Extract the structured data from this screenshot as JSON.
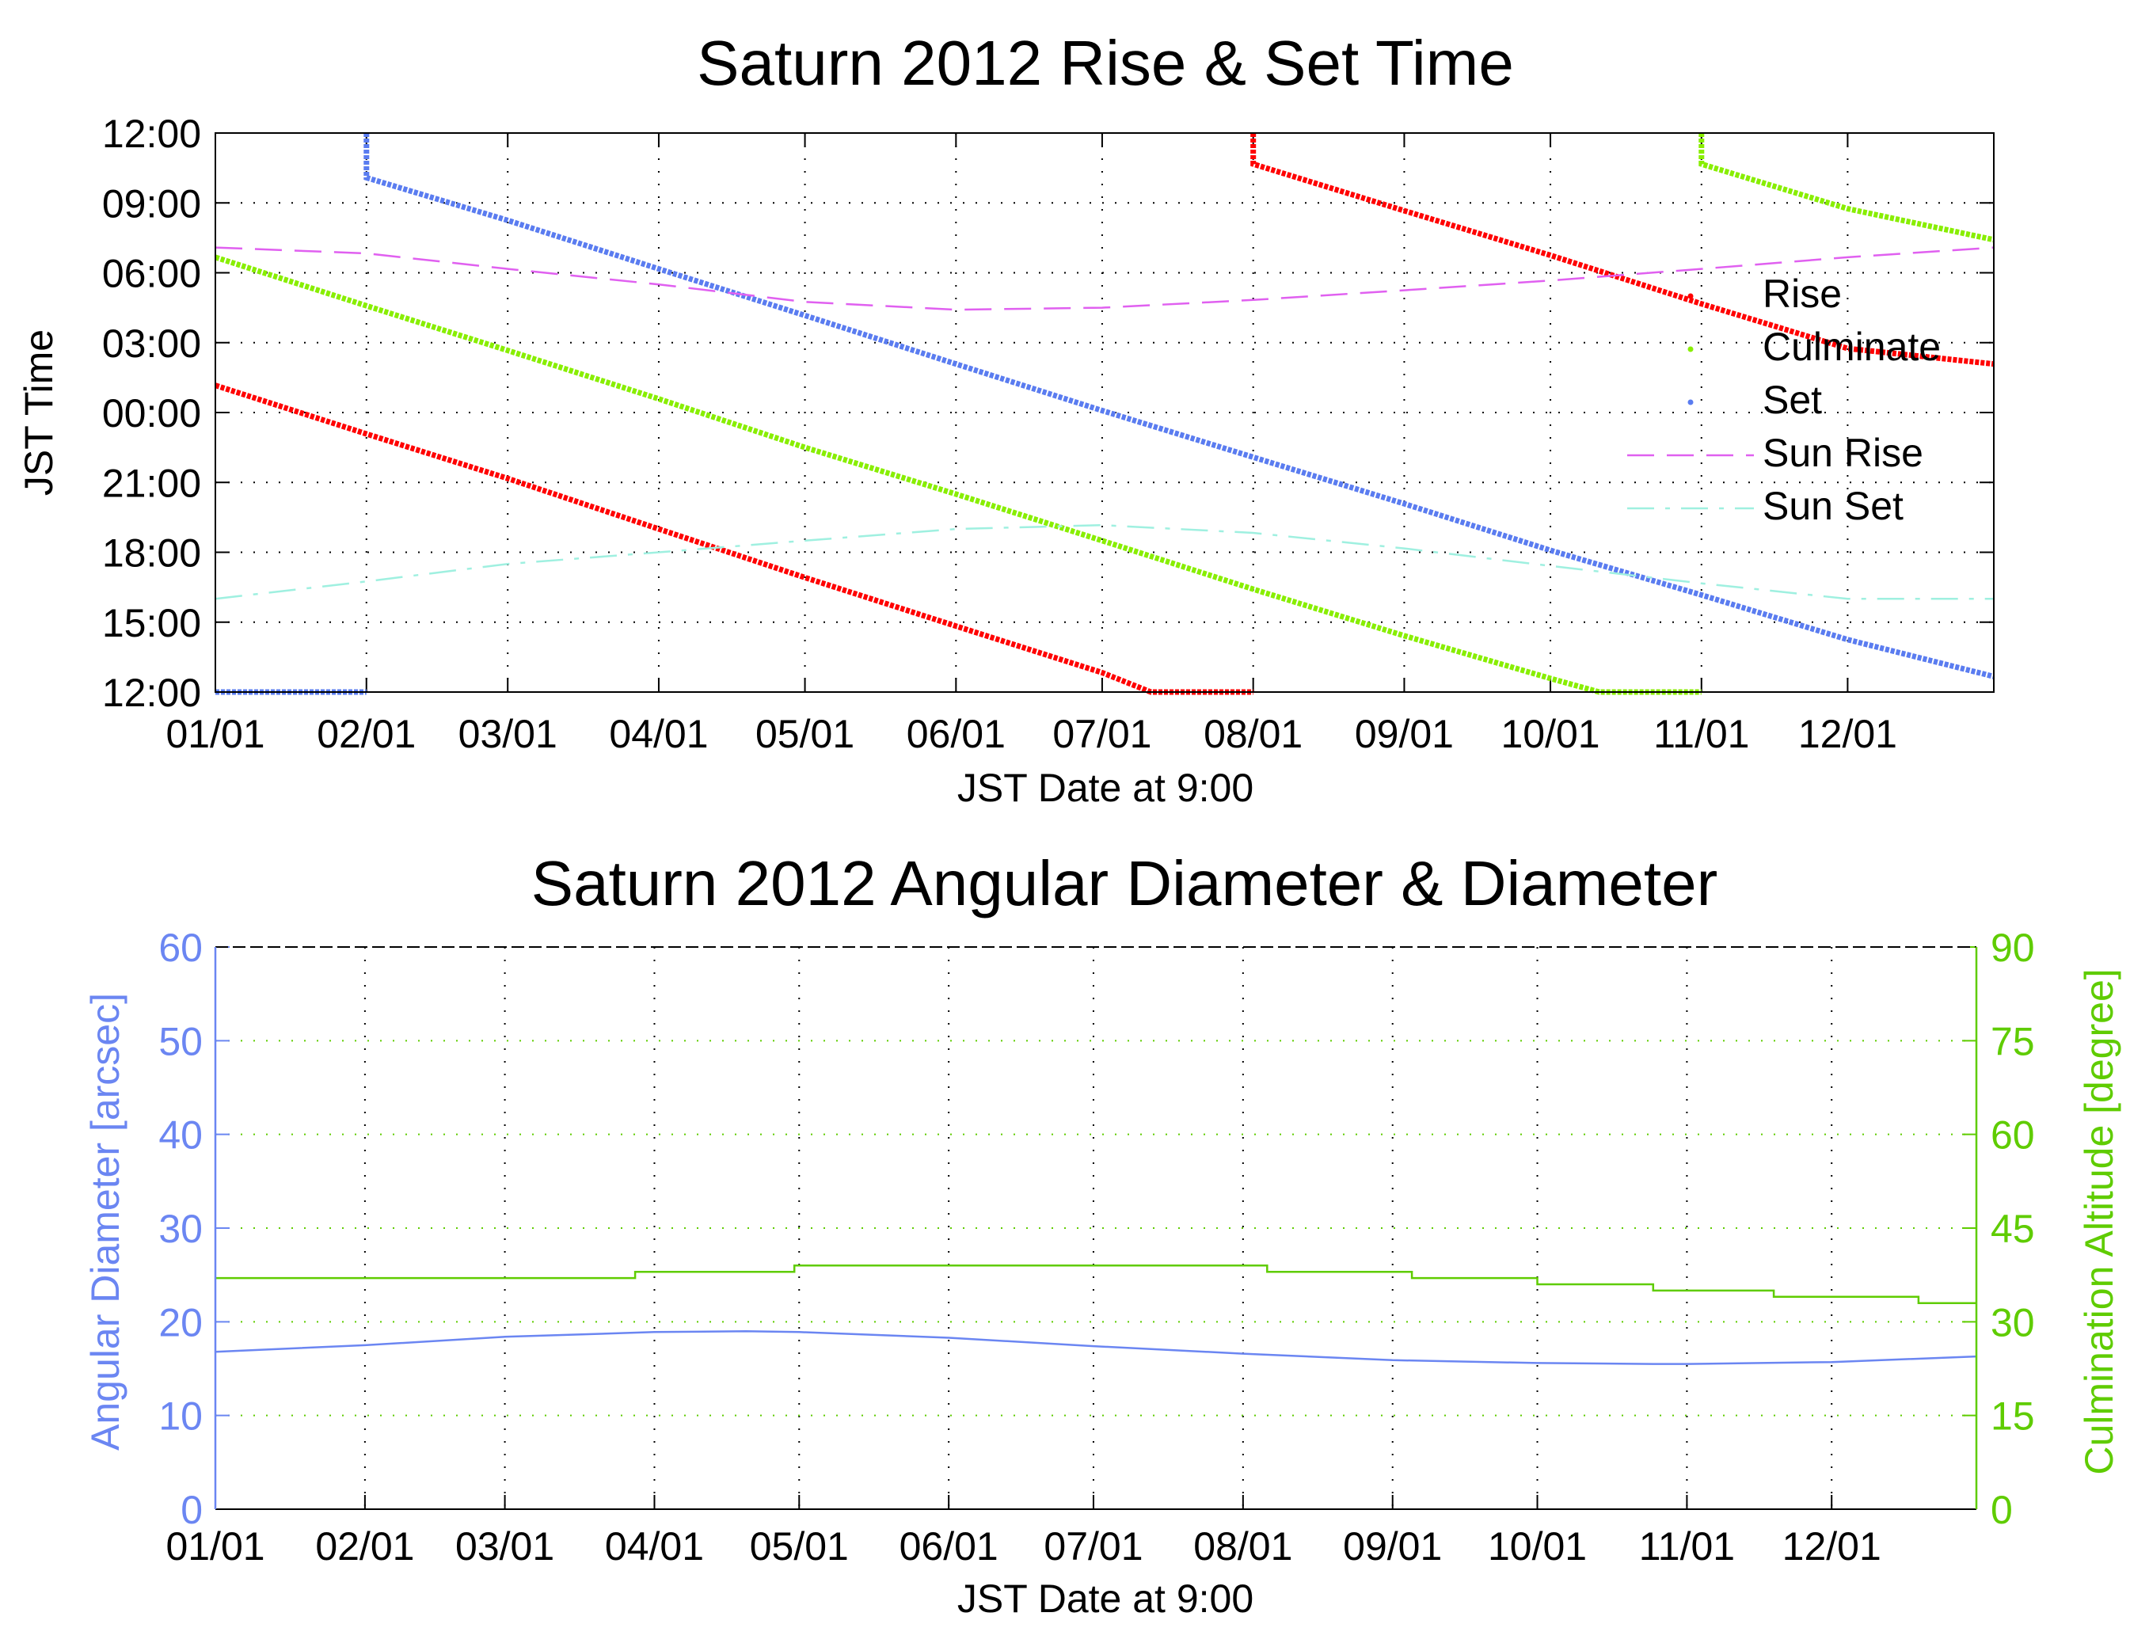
{
  "chart_data": [
    {
      "type": "scatter",
      "title": "Saturn 2012 Rise & Set Time",
      "xlabel": "JST Date at 9:00",
      "ylabel": "JST Time",
      "x_ticks": [
        "01/01",
        "02/01",
        "03/01",
        "04/01",
        "05/01",
        "06/01",
        "07/01",
        "08/01",
        "09/01",
        "10/01",
        "11/01",
        "12/01"
      ],
      "y_ticks": [
        "12:00",
        "15:00",
        "18:00",
        "21:00",
        "00:00",
        "03:00",
        "06:00",
        "09:00",
        "12:00"
      ],
      "xlim": [
        "2012-01-01",
        "2012-12-31"
      ],
      "ylim": [
        "12:00",
        "12:00 (+1 day)"
      ],
      "y_scale_note": "time of day from 12:00 (bottom) through 00:00 to 12:00 (top)",
      "grid": true,
      "legend": "right",
      "series": [
        {
          "name": "Rise",
          "color": "#ff0000",
          "style": "dots",
          "points": [
            [
              "2012-01-01",
              "01:10"
            ],
            [
              "2012-02-01",
              "23:05"
            ],
            [
              "2012-03-01",
              "21:10"
            ],
            [
              "2012-04-01",
              "19:00"
            ],
            [
              "2012-05-01",
              "16:55"
            ],
            [
              "2012-06-01",
              "14:50"
            ],
            [
              "2012-07-01",
              "12:50"
            ],
            [
              "2012-07-11",
              "12:00"
            ],
            [
              "2012-07-12",
              "12:00"
            ],
            [
              "2012-08-01",
              "10:40"
            ],
            [
              "2012-09-01",
              "08:40"
            ],
            [
              "2012-10-01",
              "06:45"
            ],
            [
              "2012-11-01",
              "04:40"
            ],
            [
              "2012-12-01",
              "02:45"
            ],
            [
              "2012-12-31",
              "02:05"
            ]
          ]
        },
        {
          "name": "Culminate",
          "color": "#88ee00",
          "style": "dots",
          "points": [
            [
              "2012-01-01",
              "06:40"
            ],
            [
              "2012-02-01",
              "04:35"
            ],
            [
              "2012-03-01",
              "02:40"
            ],
            [
              "2012-04-01",
              "00:35"
            ],
            [
              "2012-05-01",
              "22:30"
            ],
            [
              "2012-06-01",
              "20:30"
            ],
            [
              "2012-07-01",
              "18:30"
            ],
            [
              "2012-08-01",
              "16:25"
            ],
            [
              "2012-09-01",
              "14:25"
            ],
            [
              "2012-10-01",
              "12:35"
            ],
            [
              "2012-10-11",
              "12:00"
            ],
            [
              "2012-10-12",
              "12:00"
            ],
            [
              "2012-11-01",
              "10:40"
            ],
            [
              "2012-12-01",
              "08:45"
            ],
            [
              "2012-12-31",
              "07:25"
            ]
          ]
        },
        {
          "name": "Set",
          "color": "#5a7cf0",
          "style": "dots",
          "points": [
            [
              "2012-01-01",
              "12:00"
            ],
            [
              "2012-02-01",
              "10:05"
            ],
            [
              "2012-03-01",
              "08:15"
            ],
            [
              "2012-04-01",
              "06:10"
            ],
            [
              "2012-05-01",
              "04:10"
            ],
            [
              "2012-06-01",
              "02:05"
            ],
            [
              "2012-07-01",
              "00:05"
            ],
            [
              "2012-08-01",
              "22:05"
            ],
            [
              "2012-09-01",
              "20:05"
            ],
            [
              "2012-10-01",
              "18:05"
            ],
            [
              "2012-11-01",
              "16:10"
            ],
            [
              "2012-12-01",
              "14:15"
            ],
            [
              "2012-12-31",
              "12:40"
            ]
          ]
        },
        {
          "name": "Sun Rise",
          "color": "#e060f0",
          "style": "dashed",
          "points": [
            [
              "2012-01-01",
              "07:05"
            ],
            [
              "2012-02-01",
              "06:50"
            ],
            [
              "2012-03-01",
              "06:10"
            ],
            [
              "2012-04-01",
              "05:30"
            ],
            [
              "2012-05-01",
              "04:45"
            ],
            [
              "2012-06-01",
              "04:25"
            ],
            [
              "2012-07-01",
              "04:30"
            ],
            [
              "2012-08-01",
              "04:50"
            ],
            [
              "2012-09-01",
              "05:15"
            ],
            [
              "2012-10-01",
              "05:40"
            ],
            [
              "2012-11-01",
              "06:10"
            ],
            [
              "2012-12-01",
              "06:40"
            ],
            [
              "2012-12-31",
              "07:05"
            ]
          ]
        },
        {
          "name": "Sun Set",
          "color": "#9ff0e0",
          "style": "dash-dot",
          "points": [
            [
              "2012-01-01",
              "16:00"
            ],
            [
              "2012-02-01",
              "16:45"
            ],
            [
              "2012-03-01",
              "17:30"
            ],
            [
              "2012-04-01",
              "18:00"
            ],
            [
              "2012-05-01",
              "18:30"
            ],
            [
              "2012-06-01",
              "19:00"
            ],
            [
              "2012-07-01",
              "19:10"
            ],
            [
              "2012-08-01",
              "18:50"
            ],
            [
              "2012-09-01",
              "18:10"
            ],
            [
              "2012-10-01",
              "17:25"
            ],
            [
              "2012-11-01",
              "16:40"
            ],
            [
              "2012-12-01",
              "16:00"
            ],
            [
              "2012-12-31",
              "16:00"
            ]
          ]
        }
      ]
    },
    {
      "type": "line",
      "title": "Saturn 2012 Angular Diameter & Diameter",
      "xlabel": "JST Date at 9:00",
      "ylabel_left": "Angular Diameter [arcsec]",
      "ylabel_right": "Culmination Altitude [degree]",
      "x_ticks": [
        "01/01",
        "02/01",
        "03/01",
        "04/01",
        "05/01",
        "06/01",
        "07/01",
        "08/01",
        "09/01",
        "10/01",
        "11/01",
        "12/01"
      ],
      "y_ticks_left": [
        "0",
        "10",
        "20",
        "30",
        "40",
        "50",
        "60"
      ],
      "y_ticks_right": [
        "0",
        "15",
        "30",
        "45",
        "60",
        "75",
        "90"
      ],
      "xlim": [
        "2012-01-01",
        "2012-12-31"
      ],
      "ylim_left": [
        0,
        60
      ],
      "ylim_right": [
        0,
        90
      ],
      "grid": true,
      "left_axis_color": "#6b86f2",
      "right_axis_color": "#5fcc00",
      "series": [
        {
          "axis": "left",
          "color": "#6b86f2",
          "points": [
            [
              "2012-01-01",
              16.8
            ],
            [
              "2012-02-01",
              17.5
            ],
            [
              "2012-03-01",
              18.4
            ],
            [
              "2012-04-01",
              18.9
            ],
            [
              "2012-04-20",
              19.0
            ],
            [
              "2012-05-01",
              18.9
            ],
            [
              "2012-06-01",
              18.3
            ],
            [
              "2012-07-01",
              17.4
            ],
            [
              "2012-08-01",
              16.6
            ],
            [
              "2012-09-01",
              15.9
            ],
            [
              "2012-10-01",
              15.6
            ],
            [
              "2012-10-25",
              15.5
            ],
            [
              "2012-11-01",
              15.5
            ],
            [
              "2012-12-01",
              15.7
            ],
            [
              "2012-12-31",
              16.3
            ]
          ]
        },
        {
          "axis": "right",
          "color": "#5fcc00",
          "step": true,
          "points": [
            [
              "2012-01-01",
              37
            ],
            [
              "2012-03-28",
              38
            ],
            [
              "2012-04-30",
              39
            ],
            [
              "2012-08-06",
              38
            ],
            [
              "2012-09-05",
              37
            ],
            [
              "2012-10-01",
              36
            ],
            [
              "2012-10-25",
              35
            ],
            [
              "2012-11-19",
              34
            ],
            [
              "2012-12-19",
              33
            ],
            [
              "2012-12-31",
              33
            ]
          ]
        }
      ]
    }
  ]
}
